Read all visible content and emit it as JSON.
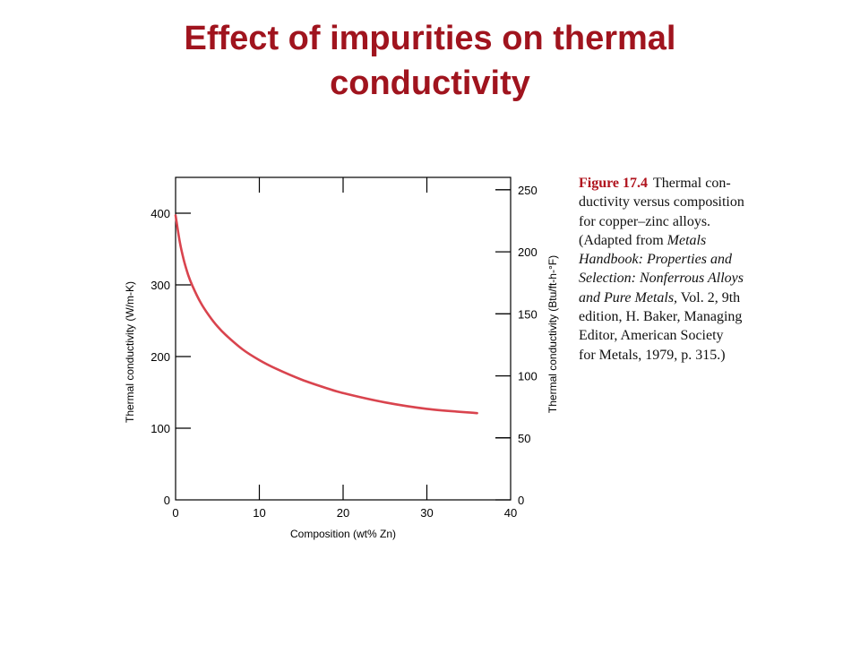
{
  "slide": {
    "title_line1": "Effect of impurities on thermal",
    "title_line2": "conductivity",
    "title_color": "#A0141E"
  },
  "caption": {
    "figure_number": "Figure 17.4",
    "lines": [
      {
        "text": "Thermal con-"
      },
      {
        "text": "ductivity versus composition"
      },
      {
        "text": "for copper–zinc alloys."
      },
      {
        "text": "(Adapted from ",
        "italic": "Metals"
      },
      {
        "italic": "Handbook: Properties and"
      },
      {
        "italic": "Selection: Nonferrous Alloys"
      },
      {
        "italic": "and Pure Metals,",
        "text": " Vol. 2, 9th"
      },
      {
        "text": "edition, H. Baker, Managing"
      },
      {
        "text": "Editor, American Society"
      },
      {
        "text": "for Metals, 1979, p. 315.)"
      }
    ]
  },
  "chart_data": {
    "type": "line",
    "title": "",
    "xlabel": "Composition (wt% Zn)",
    "ylabel": "Thermal conductivity (W/m-K)",
    "y2label": "Thermal conductivity (Btu/ft-h-°F)",
    "xlim": [
      0,
      40
    ],
    "ylim": [
      0,
      450
    ],
    "y2lim": [
      0,
      260
    ],
    "xticks": [
      0,
      10,
      20,
      30,
      40
    ],
    "yticks": [
      0,
      100,
      200,
      300,
      400
    ],
    "y2ticks": [
      0,
      50,
      100,
      150,
      200,
      250
    ],
    "grid": false,
    "line_color": "#D9444E",
    "series": [
      {
        "x": [
          0,
          0.5,
          1,
          1.5,
          2,
          3,
          4,
          5,
          6,
          8,
          10,
          12,
          15,
          18,
          20,
          25,
          30,
          36
        ],
        "values": [
          397,
          360,
          334,
          314,
          299,
          275,
          257,
          242,
          230,
          210,
          195,
          183,
          168,
          156,
          149,
          136,
          127,
          121
        ]
      }
    ]
  }
}
